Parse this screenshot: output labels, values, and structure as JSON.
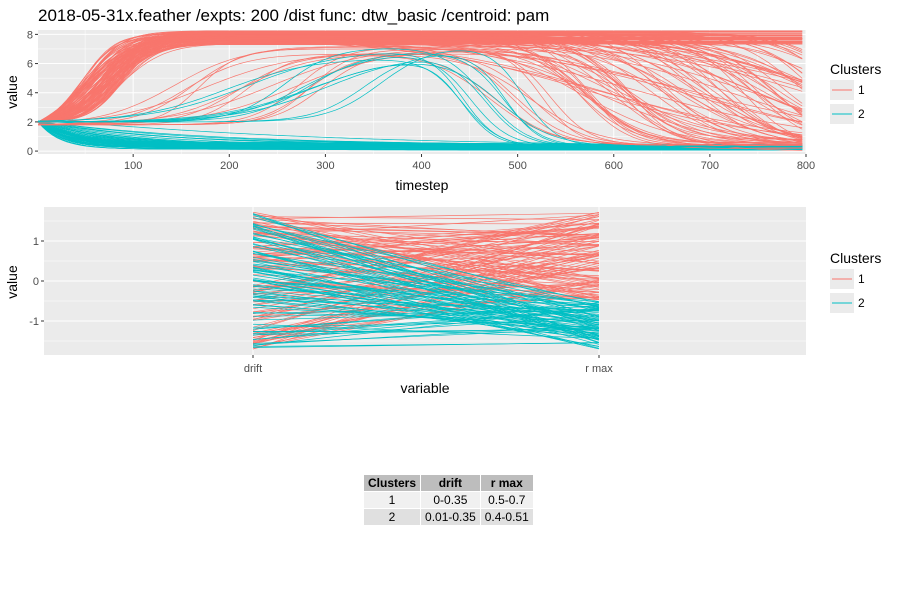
{
  "title": "2018-05-31x.feather /expts: 200 /dist func: dtw_basic /centroid: pam",
  "colors": {
    "cluster1": "#F8766D",
    "cluster2": "#00BFC4",
    "panel": "#EBEBEB",
    "grid": "#FFFFFF"
  },
  "legend": {
    "title": "Clusters",
    "items": [
      "1",
      "2"
    ]
  },
  "chart_data": [
    {
      "type": "line",
      "xlabel": "timestep",
      "ylabel": "value",
      "xlim": [
        1,
        800
      ],
      "ylim": [
        -0.2,
        8.3
      ],
      "xticks": [
        100,
        200,
        300,
        400,
        500,
        600,
        700,
        800
      ],
      "yticks": [
        0,
        2,
        4,
        6,
        8
      ],
      "grid": true,
      "legend_position": "right",
      "series": [
        {
          "name": "1",
          "description_points": [
            [
              1,
              2
            ],
            [
              100,
              8
            ],
            [
              800,
              8
            ]
          ]
        },
        {
          "name": "1",
          "description_points": [
            [
              1,
              2
            ],
            [
              300,
              7.1
            ],
            [
              450,
              6.8
            ],
            [
              560,
              0.5
            ],
            [
              800,
              0.5
            ]
          ]
        },
        {
          "name": "1",
          "description_points": [
            [
              1,
              2
            ],
            [
              400,
              6.3
            ],
            [
              450,
              6.8
            ],
            [
              550,
              0.5
            ],
            [
              800,
              0.5
            ]
          ]
        },
        {
          "name": "2",
          "description_points": [
            [
              1,
              2
            ],
            [
              100,
              1.5
            ],
            [
              500,
              0.3
            ],
            [
              800,
              0.2
            ]
          ]
        },
        {
          "name": "2",
          "description_points": [
            [
              1,
              2
            ],
            [
              100,
              0.5
            ],
            [
              800,
              0.1
            ]
          ]
        }
      ]
    },
    {
      "type": "line",
      "xlabel": "variable",
      "ylabel": "value",
      "categories": [
        "drift",
        "r max"
      ],
      "ylim": [
        -1.85,
        1.85
      ],
      "yticks": [
        -1,
        0,
        1
      ],
      "grid": true,
      "legend_position": "right",
      "series": [
        {
          "name": "1",
          "drift_range": [
            -1.7,
            1.75
          ],
          "rmax_range": [
            -0.5,
            1.75
          ]
        },
        {
          "name": "2",
          "drift_range": [
            -1.7,
            1.75
          ],
          "rmax_range": [
            -1.7,
            -0.5
          ]
        }
      ]
    },
    {
      "type": "table",
      "columns": [
        "Clusters",
        "drift",
        "r max"
      ],
      "rows": [
        [
          "1",
          "0-0.35",
          "0.5-0.7"
        ],
        [
          "2",
          "0.01-0.35",
          "0.4-0.51"
        ]
      ]
    }
  ]
}
